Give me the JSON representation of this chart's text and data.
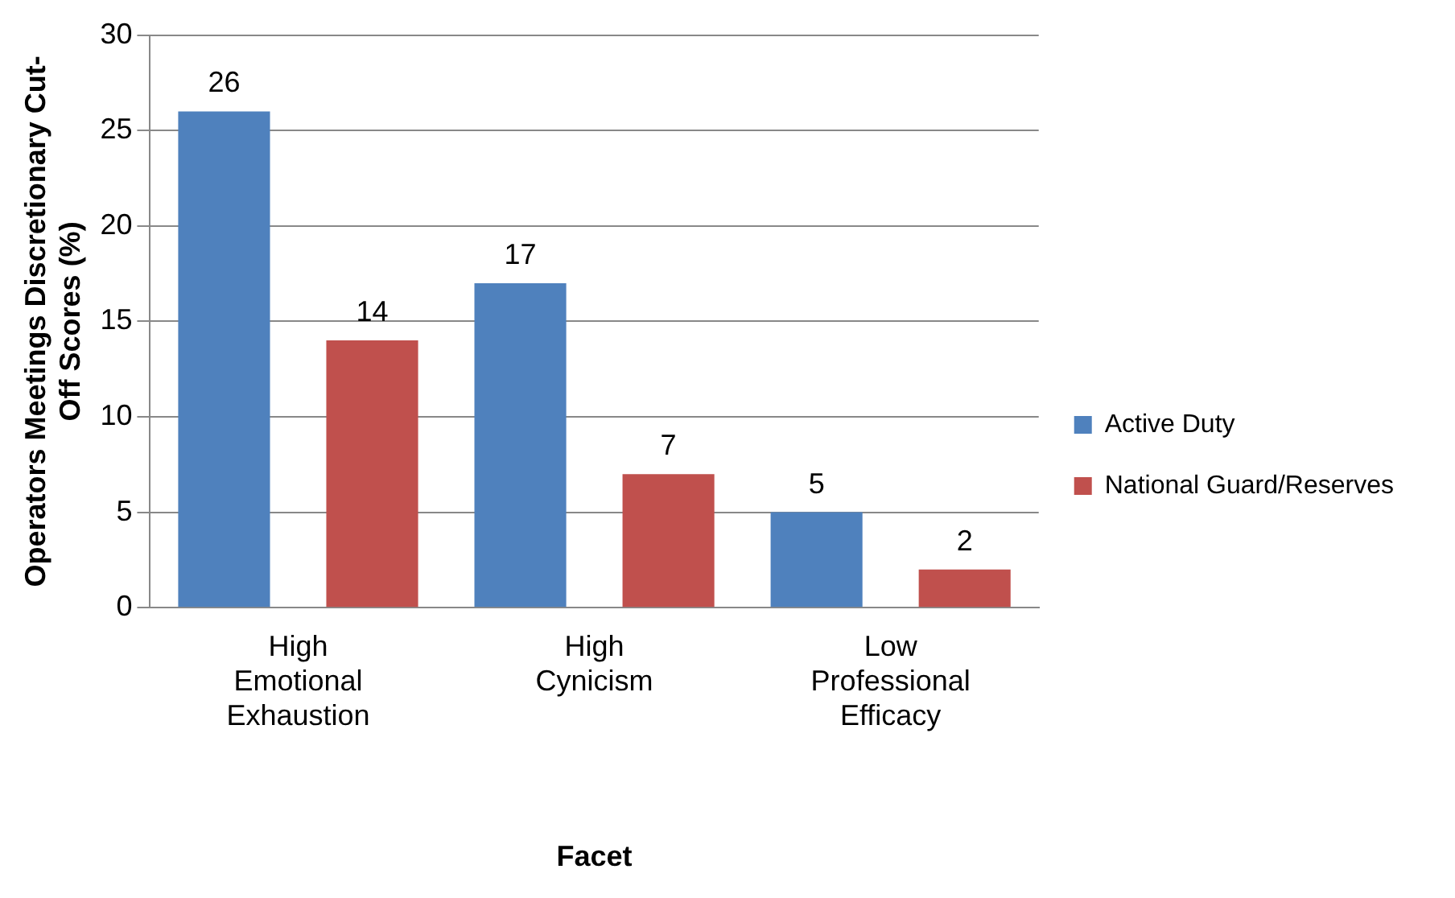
{
  "chart_data": {
    "type": "bar",
    "xlabel": "Facet",
    "ylabel": "Operators Meetings Discretionary Cut-Off Scores (%)",
    "categories": [
      "High Emotional Exhaustion",
      "High Cynicism",
      "Low Professional Efficacy"
    ],
    "series": [
      {
        "name": "Active Duty",
        "color": "#4f81bd",
        "values": [
          26,
          17,
          5
        ]
      },
      {
        "name": "National Guard/Reserves",
        "color": "#c0504d",
        "values": [
          14,
          7,
          2
        ]
      }
    ],
    "ylim": [
      0,
      30
    ],
    "yticks": [
      0,
      5,
      10,
      15,
      20,
      25,
      30
    ],
    "grid": "y",
    "legend": "right",
    "data_labels": true
  }
}
